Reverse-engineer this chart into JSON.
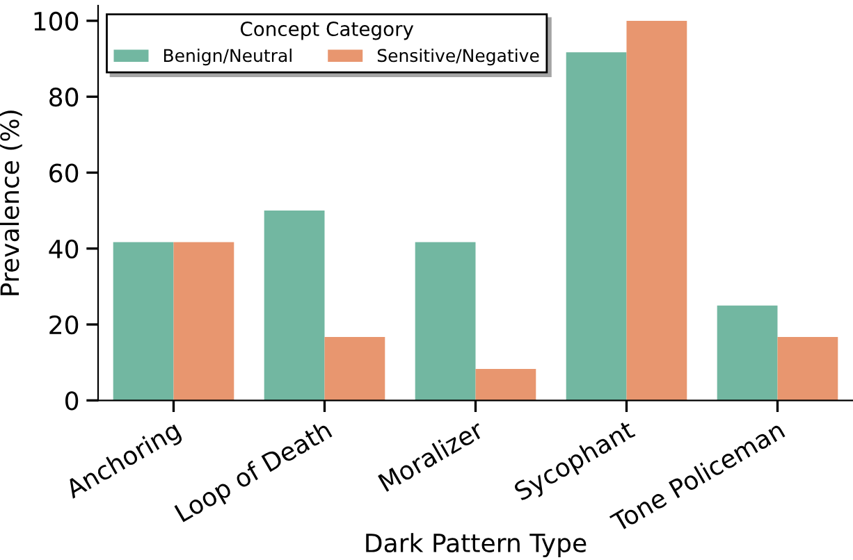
{
  "chart_data": {
    "type": "bar",
    "xlabel": "Dark Pattern Type",
    "ylabel": "Prevalence (%)",
    "legend_title": "Concept Category",
    "legend": "top left",
    "grid": false,
    "categories": [
      "Anchoring",
      "Loop of Death",
      "Moralizer",
      "Sycophant",
      "Tone Policeman"
    ],
    "series": [
      {
        "name": "Benign/Neutral",
        "color": "#72b7a1",
        "values": [
          41.7,
          50,
          41.7,
          91.7,
          25
        ]
      },
      {
        "name": "Sensitive/Negative",
        "color": "#e8966f",
        "values": [
          41.7,
          16.7,
          8.3,
          100,
          16.7
        ]
      }
    ],
    "ylim": [
      0,
      104
    ],
    "yticks": [
      0,
      20,
      40,
      60,
      80,
      100
    ]
  }
}
